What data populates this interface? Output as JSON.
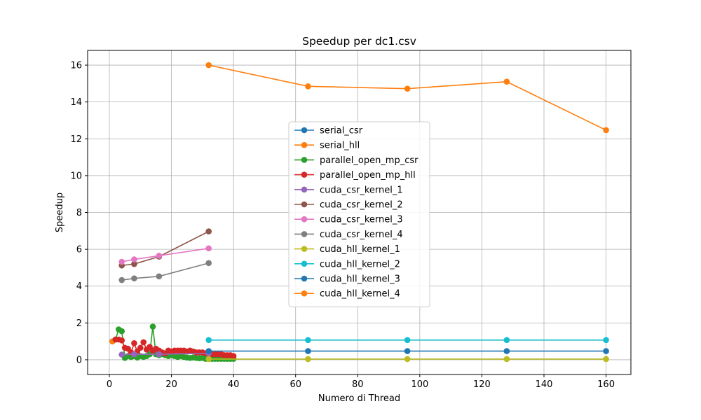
{
  "chart_data": {
    "type": "line",
    "title": "Speedup per dc1.csv",
    "xlabel": "Numero di Thread",
    "ylabel": "Speedup",
    "xlim": [
      -7,
      168
    ],
    "ylim": [
      -0.8,
      16.8
    ],
    "xticks": [
      0,
      20,
      40,
      60,
      80,
      100,
      120,
      140,
      160
    ],
    "yticks": [
      0,
      2,
      4,
      6,
      8,
      10,
      12,
      14,
      16
    ],
    "grid": true,
    "legend_position": "center",
    "series": [
      {
        "name": "serial_csr",
        "color": "#1f77b4",
        "x": [
          1
        ],
        "y": [
          1.0
        ]
      },
      {
        "name": "serial_hll",
        "color": "#ff7f0e",
        "x": [
          1
        ],
        "y": [
          1.0
        ]
      },
      {
        "name": "parallel_open_mp_csr",
        "color": "#2ca02c",
        "x": [
          2,
          3,
          4,
          5,
          6,
          7,
          8,
          9,
          10,
          11,
          12,
          13,
          14,
          15,
          16,
          17,
          18,
          19,
          20,
          21,
          22,
          23,
          24,
          25,
          26,
          27,
          28,
          29,
          30,
          31,
          32,
          33,
          34,
          35,
          36,
          37,
          38,
          39,
          40
        ],
        "y": [
          1.1,
          1.65,
          1.55,
          0.1,
          0.2,
          0.15,
          0.2,
          0.12,
          0.2,
          0.15,
          0.2,
          0.3,
          1.8,
          0.3,
          0.25,
          0.3,
          0.25,
          0.2,
          0.25,
          0.2,
          0.15,
          0.2,
          0.15,
          0.12,
          0.1,
          0.12,
          0.1,
          0.08,
          0.1,
          0.05,
          0.08,
          0.05,
          0.05,
          0.05,
          0.05,
          0.05,
          0.05,
          0.05,
          0.05
        ]
      },
      {
        "name": "parallel_open_mp_hll",
        "color": "#d62728",
        "x": [
          2,
          3,
          4,
          5,
          6,
          7,
          8,
          9,
          10,
          11,
          12,
          13,
          14,
          15,
          16,
          17,
          18,
          19,
          20,
          21,
          22,
          23,
          24,
          25,
          26,
          27,
          28,
          29,
          30,
          31,
          32,
          33,
          34,
          35,
          36,
          37,
          38,
          39,
          40
        ],
        "y": [
          1.1,
          1.1,
          1.05,
          0.65,
          0.6,
          0.4,
          0.9,
          0.45,
          0.65,
          0.95,
          0.55,
          0.7,
          0.5,
          0.6,
          0.5,
          0.4,
          0.35,
          0.5,
          0.45,
          0.5,
          0.5,
          0.5,
          0.5,
          0.45,
          0.5,
          0.45,
          0.4,
          0.4,
          0.4,
          0.35,
          0.35,
          0.3,
          0.3,
          0.3,
          0.3,
          0.25,
          0.25,
          0.25,
          0.2
        ]
      },
      {
        "name": "cuda_csr_kernel_1",
        "color": "#9467bd",
        "x": [
          4,
          8,
          16,
          32
        ],
        "y": [
          0.28,
          0.3,
          0.3,
          0.35
        ]
      },
      {
        "name": "cuda_csr_kernel_2",
        "color": "#8c564b",
        "x": [
          4,
          8,
          16,
          32
        ],
        "y": [
          5.12,
          5.2,
          5.6,
          6.97
        ]
      },
      {
        "name": "cuda_csr_kernel_3",
        "color": "#e377c2",
        "x": [
          4,
          8,
          16,
          32
        ],
        "y": [
          5.32,
          5.45,
          5.65,
          6.05
        ]
      },
      {
        "name": "cuda_csr_kernel_4",
        "color": "#7f7f7f",
        "x": [
          4,
          8,
          16,
          32
        ],
        "y": [
          4.33,
          4.42,
          4.53,
          5.25
        ]
      },
      {
        "name": "cuda_hll_kernel_1",
        "color": "#bcbd22",
        "x": [
          32,
          64,
          96,
          128,
          160
        ],
        "y": [
          0.04,
          0.04,
          0.04,
          0.04,
          0.04
        ]
      },
      {
        "name": "cuda_hll_kernel_2",
        "color": "#17becf",
        "x": [
          32,
          64,
          96,
          128,
          160
        ],
        "y": [
          1.07,
          1.07,
          1.07,
          1.07,
          1.07
        ]
      },
      {
        "name": "cuda_hll_kernel_3",
        "color": "#1f77b4",
        "x": [
          32,
          64,
          96,
          128,
          160
        ],
        "y": [
          0.47,
          0.47,
          0.47,
          0.47,
          0.47
        ]
      },
      {
        "name": "cuda_hll_kernel_4",
        "color": "#ff7f0e",
        "x": [
          32,
          64,
          96,
          128,
          160
        ],
        "y": [
          16.0,
          14.85,
          14.72,
          15.1,
          12.47
        ]
      }
    ]
  }
}
